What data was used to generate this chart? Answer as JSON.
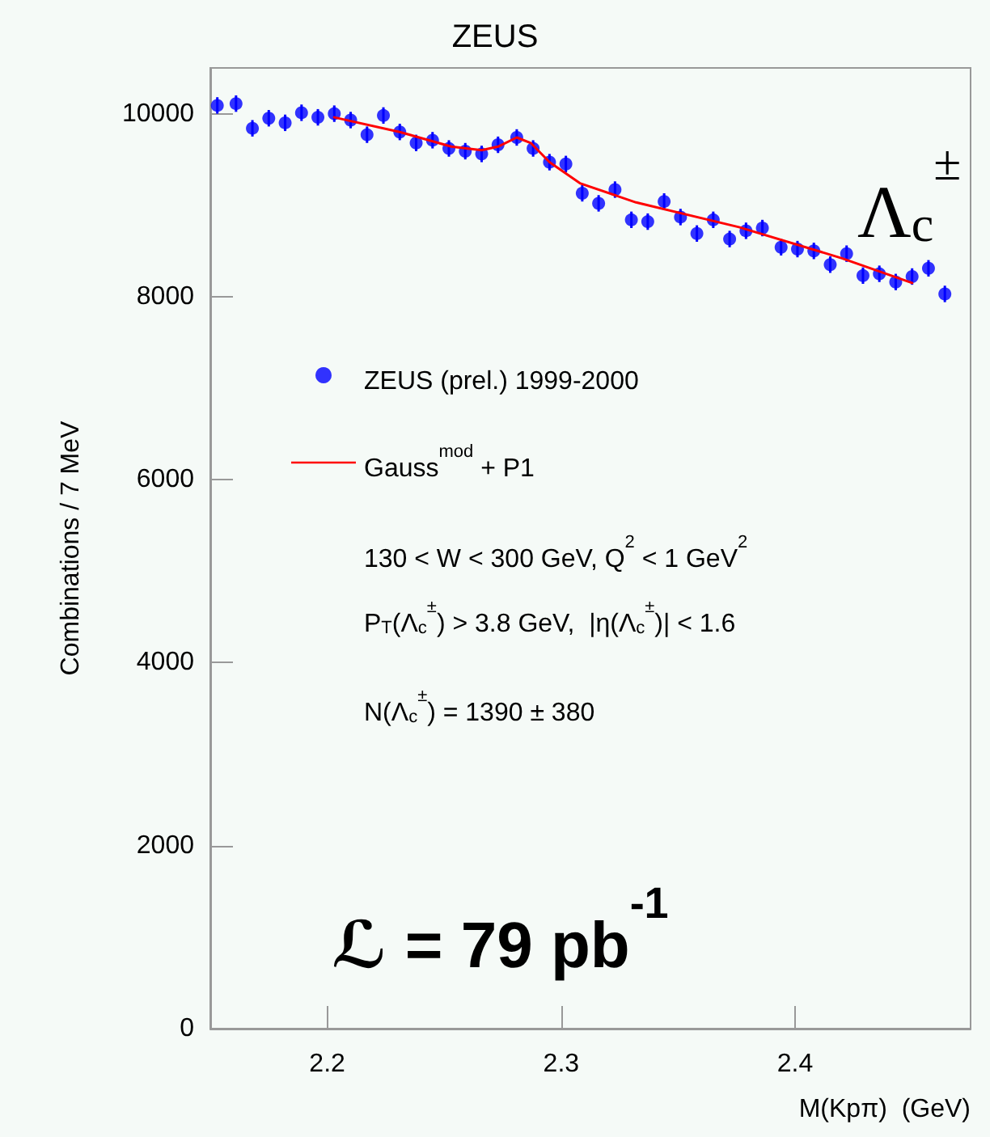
{
  "chart_data": {
    "type": "scatter",
    "title": "ZEUS",
    "xlabel": "M(Kpπ)  (GeV)",
    "ylabel": "Combinations / 7 MeV",
    "xlim": [
      2.15,
      2.475
    ],
    "xticks": [
      2.2,
      2.3,
      2.4
    ],
    "ylim": [
      0,
      10500
    ],
    "yticks": [
      0,
      2000,
      4000,
      6000,
      8000,
      10000
    ],
    "grid": false,
    "legend": "left",
    "series": [
      {
        "name": "ZEUS (prel.) 1999-2000",
        "color": "#0000ff",
        "marker": "circle",
        "x": [
          2.153,
          2.161,
          2.168,
          2.175,
          2.182,
          2.189,
          2.196,
          2.203,
          2.21,
          2.217,
          2.224,
          2.231,
          2.238,
          2.245,
          2.252,
          2.259,
          2.266,
          2.273,
          2.281,
          2.288,
          2.295,
          2.302,
          2.309,
          2.316,
          2.323,
          2.33,
          2.337,
          2.344,
          2.351,
          2.358,
          2.365,
          2.372,
          2.379,
          2.386,
          2.394,
          2.401,
          2.408,
          2.415,
          2.422,
          2.429,
          2.436,
          2.443,
          2.45,
          2.457,
          2.464
        ],
        "values": [
          10090,
          10110,
          9840,
          9950,
          9900,
          10010,
          9960,
          10000,
          9930,
          9770,
          9980,
          9800,
          9680,
          9710,
          9620,
          9590,
          9560,
          9660,
          9740,
          9620,
          9470,
          9450,
          9130,
          9020,
          9170,
          8840,
          8820,
          9040,
          8870,
          8690,
          8840,
          8630,
          8720,
          8750,
          8540,
          8520,
          8500,
          8350,
          8470,
          8230,
          8250,
          8160,
          8220,
          8310,
          8030
        ],
        "errors": [
          90,
          90,
          90,
          90,
          90,
          90,
          90,
          90,
          90,
          90,
          90,
          90,
          90,
          90,
          90,
          90,
          90,
          90,
          90,
          90,
          90,
          90,
          90,
          90,
          90,
          90,
          90,
          90,
          90,
          90,
          90,
          90,
          90,
          90,
          90,
          90,
          90,
          90,
          90,
          90,
          90,
          90,
          90,
          90,
          90
        ]
      },
      {
        "name": "Gauss$^{mod}$ + P1",
        "type": "line",
        "color": "#ff0000",
        "line_style": "solid",
        "x": [
          2.203,
          2.231,
          2.253,
          2.266,
          2.273,
          2.281,
          2.287,
          2.295,
          2.308,
          2.332,
          2.376,
          2.42,
          2.45
        ],
        "values": [
          9960,
          9800,
          9640,
          9600,
          9640,
          9740,
          9680,
          9470,
          9240,
          9030,
          8760,
          8420,
          8150
        ]
      }
    ],
    "annotations": [
      "130 < W < 300 GeV, Q$^{2}$ < 1 GeV$^{2}$",
      "P$_{T}$(Λ$_{c}$$^{±}$) > 3.8 GeV,  |η(Λ$_{c}$$^{±}$)| < 1.6",
      "N(Λ$_{c}$$^{±}$) = 1390 ± 380",
      "ℒ = 79 pb$^{-1}$",
      "Λ$_{c}$$^{±}$"
    ]
  }
}
